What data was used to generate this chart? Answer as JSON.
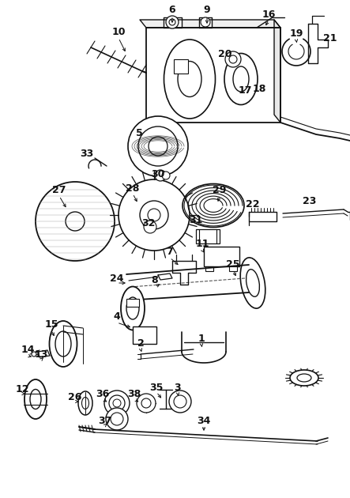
{
  "bg_color": "#ffffff",
  "line_color": "#111111",
  "fig_width": 4.43,
  "fig_height": 6.3,
  "dpi": 100,
  "xlim": [
    0,
    443
  ],
  "ylim": [
    0,
    630
  ]
}
